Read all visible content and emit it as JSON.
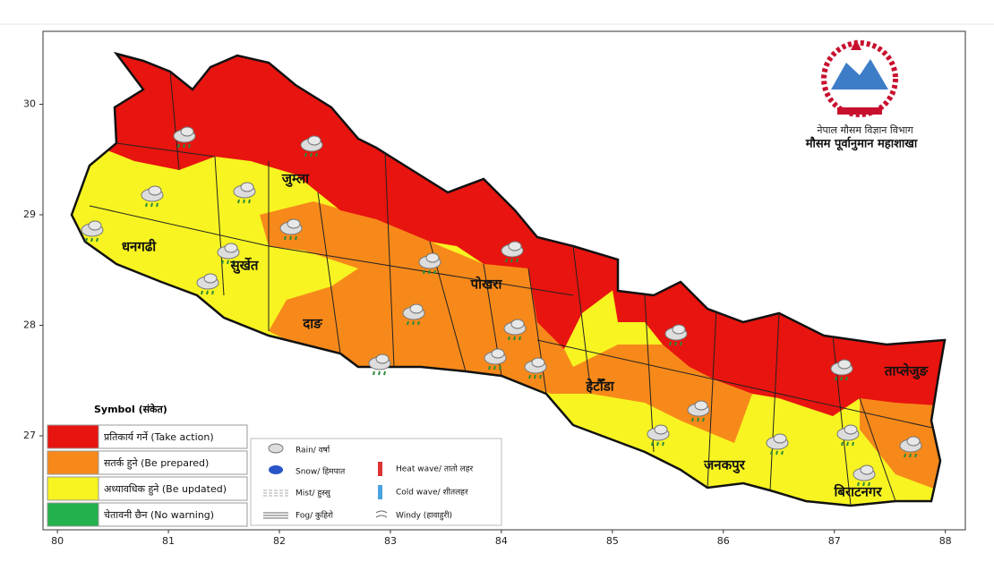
{
  "map": {
    "xlim": [
      79.87,
      88.18
    ],
    "ylim": [
      26.15,
      30.66
    ],
    "xticks": [
      80,
      81,
      82,
      83,
      84,
      85,
      86,
      87,
      88
    ],
    "yticks": [
      27,
      28,
      29,
      30
    ]
  },
  "header": {
    "department": "नेपाल मौसम विज्ञान विभाग",
    "division": "मौसम पूर्वानुमान महाशाखा"
  },
  "places": [
    "जुम्ला",
    "धनगढी",
    "सुर्खेत",
    "पोखरा",
    "दाङ",
    "हेटौँडा",
    "जनकपुर",
    "बिराटनगर",
    "ताप्लेजुङ"
  ],
  "legend": {
    "title": "Symbol (संकेत)",
    "levels": [
      {
        "label": "प्रतिकार्य गर्ने (Take action)",
        "color": "#e8140f"
      },
      {
        "label": "सतर्क हुने (Be prepared)",
        "color": "#f7891a"
      },
      {
        "label": "अध्यावधिक हुने (Be updated)",
        "color": "#f7f421"
      },
      {
        "label": "चेतावनी छैन (No warning)",
        "color": "#22b14c"
      }
    ],
    "symbols": [
      "Rain/ वर्षा",
      "Snow/ हिमपात",
      "Mist/ हुस्सु",
      "Fog/ कुहिरो",
      "Heat wave/ तातो लहर",
      "Cold wave/ शीतलहर",
      "Windy (हावाहुरी)"
    ]
  }
}
